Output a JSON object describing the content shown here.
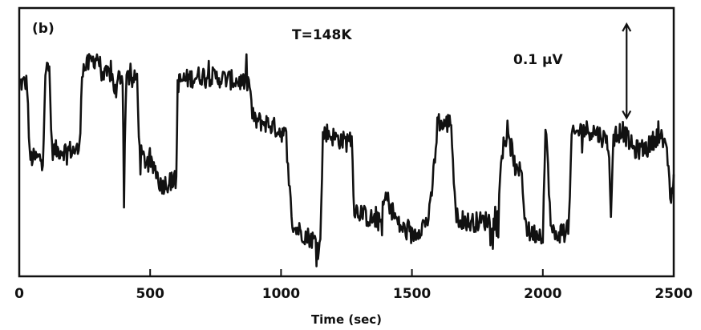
{
  "chart_data": {
    "type": "line",
    "panel_label": "(b)",
    "title": "T=148K",
    "xlabel": "Time (sec)",
    "ylabel": "",
    "xlim": [
      0,
      2500
    ],
    "ylim": [
      0,
      1
    ],
    "x_ticks": [
      0,
      500,
      1000,
      1500,
      2000,
      2500
    ],
    "x_tick_labels": [
      "0",
      "500",
      "1000",
      "1500",
      "2000",
      "2500"
    ],
    "y_ticks_labeled": false,
    "grid": false,
    "scale_bar": {
      "label": "0.1 μV",
      "x": 2320,
      "y_from": 0.94,
      "y_to": 0.59
    },
    "series": [
      {
        "x": [
          0,
          30,
          40,
          90,
          100,
          115,
          125,
          230,
          240,
          300,
          320,
          350,
          370,
          380,
          395,
          400,
          410,
          425,
          450,
          460,
          490,
          520,
          540,
          600,
          605,
          620,
          700,
          760,
          880,
          890,
          900,
          950,
          1000,
          1020,
          1030,
          1040,
          1050,
          1070,
          1100,
          1150,
          1160,
          1170,
          1200,
          1250,
          1260,
          1270,
          1280,
          1300,
          1330,
          1380,
          1400,
          1450,
          1500,
          1560,
          1570,
          1600,
          1620,
          1650,
          1660,
          1670,
          1700,
          1720,
          1800,
          1830,
          1840,
          1850,
          1880,
          1900,
          1920,
          1930,
          1940,
          1950,
          2000,
          2010,
          2020,
          2030,
          2040,
          2050,
          2100,
          2110,
          2150,
          2200,
          2250,
          2260,
          2270,
          2300,
          2350,
          2400,
          2450,
          2480,
          2490,
          2500
        ],
        "values": [
          0.72,
          0.72,
          0.44,
          0.44,
          0.77,
          0.77,
          0.47,
          0.47,
          0.77,
          0.82,
          0.74,
          0.76,
          0.68,
          0.74,
          0.75,
          0.32,
          0.78,
          0.72,
          0.74,
          0.46,
          0.42,
          0.4,
          0.34,
          0.36,
          0.72,
          0.73,
          0.75,
          0.74,
          0.72,
          0.6,
          0.58,
          0.57,
          0.54,
          0.52,
          0.36,
          0.22,
          0.18,
          0.17,
          0.15,
          0.12,
          0.52,
          0.54,
          0.52,
          0.5,
          0.52,
          0.51,
          0.25,
          0.24,
          0.22,
          0.2,
          0.3,
          0.19,
          0.15,
          0.21,
          0.25,
          0.58,
          0.56,
          0.58,
          0.36,
          0.22,
          0.21,
          0.2,
          0.21,
          0.18,
          0.42,
          0.52,
          0.48,
          0.38,
          0.4,
          0.22,
          0.18,
          0.16,
          0.16,
          0.54,
          0.42,
          0.18,
          0.16,
          0.15,
          0.19,
          0.52,
          0.55,
          0.54,
          0.5,
          0.25,
          0.5,
          0.55,
          0.47,
          0.48,
          0.54,
          0.42,
          0.25,
          0.38
        ]
      }
    ]
  }
}
